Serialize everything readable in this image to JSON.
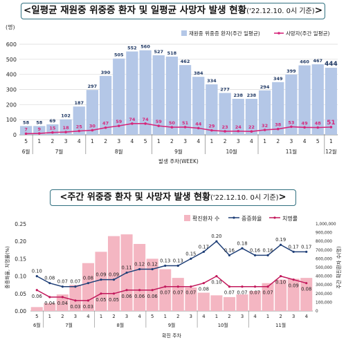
{
  "chart_data": [
    {
      "type": "bar",
      "title": "<일평균 재원중 위중증 환자 및 일평균 사망자 발생 현황",
      "title_note": "('22.12.10. 0시 기준)",
      "unit_label": "(명)",
      "xlabel": "발생 주차(WEEK)",
      "ylim": [
        0,
        600
      ],
      "yticks": [
        0,
        100,
        200,
        300,
        400,
        500,
        600
      ],
      "categories": [
        "5",
        "1",
        "2",
        "3",
        "4",
        "1",
        "2",
        "3",
        "4",
        "5",
        "1",
        "2",
        "3",
        "4",
        "1",
        "2",
        "3",
        "4",
        "1",
        "2",
        "3",
        "4",
        "5",
        "1"
      ],
      "months": [
        {
          "label": "6월",
          "start": 0,
          "end": 0
        },
        {
          "label": "7월",
          "start": 1,
          "end": 4
        },
        {
          "label": "8월",
          "start": 5,
          "end": 9
        },
        {
          "label": "9월",
          "start": 10,
          "end": 13
        },
        {
          "label": "10월",
          "start": 14,
          "end": 17
        },
        {
          "label": "11월",
          "start": 18,
          "end": 22
        },
        {
          "label": "12월",
          "start": 23,
          "end": 23
        }
      ],
      "series": [
        {
          "name": "재원중 위중증 환자(주간 일평균)",
          "kind": "bar",
          "color": "#b4c7e7",
          "values": [
            58,
            58,
            69,
            102,
            187,
            297,
            390,
            505,
            552,
            560,
            527,
            518,
            462,
            384,
            334,
            277,
            238,
            238,
            294,
            349,
            399,
            460,
            467,
            444
          ]
        },
        {
          "name": "사망자(주간 일평균)",
          "kind": "line",
          "color": "#d6267b",
          "values": [
            7,
            9,
            15,
            18,
            25,
            30,
            47,
            59,
            74,
            74,
            59,
            50,
            51,
            44,
            29,
            23,
            24,
            22,
            32,
            38,
            53,
            49,
            48,
            51
          ]
        }
      ],
      "legend": "top-right"
    },
    {
      "type": "bar",
      "title": "<주간 위중증 환자 및 사망자 발생 현황",
      "title_note": "('22.12.10. 0시 기준)",
      "xlabel": "확진 주차",
      "ylabel_left": "중증화율, 치명률(%)",
      "ylabel_right": "주간 확진환자 수(명)",
      "ylim_left": [
        0,
        0.25
      ],
      "ylim_right": [
        0,
        1000000
      ],
      "yticks_left": [
        "0.00",
        "0.05",
        "0.10",
        "0.15",
        "0.20",
        "0.25"
      ],
      "yticks_right": [
        "0",
        "100,000",
        "200,000",
        "300,000",
        "400,000",
        "500,000",
        "600,000",
        "700,000",
        "800,000",
        "900,000",
        "1,000,000"
      ],
      "categories": [
        "5",
        "1",
        "2",
        "3",
        "4",
        "1",
        "2",
        "3",
        "4",
        "5",
        "1",
        "2",
        "3",
        "4",
        "1",
        "2",
        "3",
        "4",
        "1",
        "2",
        "3",
        "4"
      ],
      "months": [
        {
          "label": "6월",
          "start": 0,
          "end": 0
        },
        {
          "label": "7월",
          "start": 1,
          "end": 4
        },
        {
          "label": "8월",
          "start": 5,
          "end": 8
        },
        {
          "label": "9월",
          "start": 9,
          "end": 12
        },
        {
          "label": "10월",
          "start": 13,
          "end": 16
        },
        {
          "label": "11월",
          "start": 17,
          "end": 21
        }
      ],
      "series": [
        {
          "name": "확진환자 수",
          "kind": "bar",
          "color": "#f4b6c2",
          "values": [
            45000,
            90000,
            190000,
            300000,
            550000,
            680000,
            860000,
            880000,
            770000,
            600000,
            480000,
            380000,
            270000,
            210000,
            180000,
            160000,
            190000,
            230000,
            320000,
            360000,
            370000,
            380000
          ]
        },
        {
          "name": "중증화율",
          "kind": "line",
          "color": "#1f3f77",
          "values": [
            0.1,
            0.08,
            0.07,
            0.07,
            0.08,
            0.09,
            0.09,
            0.11,
            0.12,
            0.12,
            0.13,
            0.13,
            0.15,
            0.17,
            0.2,
            0.16,
            0.18,
            0.16,
            0.16,
            0.19,
            0.17,
            0.17
          ],
          "labels": [
            "0.10",
            "0.08",
            "0.07",
            "0.07",
            "0.08",
            "0.09",
            "0.09",
            "0.11",
            "0.12",
            "0.12",
            "0.13",
            "0.13",
            "0.15",
            "0.17",
            "0.20",
            "0.16",
            "0.18",
            "0.16",
            "0.16",
            "0.19",
            "0.17",
            "0.17"
          ]
        },
        {
          "name": "치명률",
          "kind": "line",
          "color": "#c2185b",
          "values": [
            0.06,
            0.04,
            0.04,
            0.03,
            0.03,
            0.05,
            0.05,
            0.06,
            0.06,
            0.06,
            0.07,
            0.07,
            0.07,
            0.08,
            0.1,
            0.07,
            0.07,
            0.07,
            0.07,
            0.1,
            0.09,
            0.08
          ],
          "labels": [
            "0.06",
            "0.04",
            "0.04",
            "0.03",
            "0.03",
            "0.05",
            "0.05",
            "0.06",
            "0.06",
            "0.06",
            "0.07",
            "0.07",
            "0.07",
            "0.08",
            "0.10",
            "0.07",
            "0.07",
            "0.07",
            "0.07",
            "0.10",
            "0.09",
            "0.08"
          ]
        }
      ],
      "legend": "top-center"
    }
  ]
}
